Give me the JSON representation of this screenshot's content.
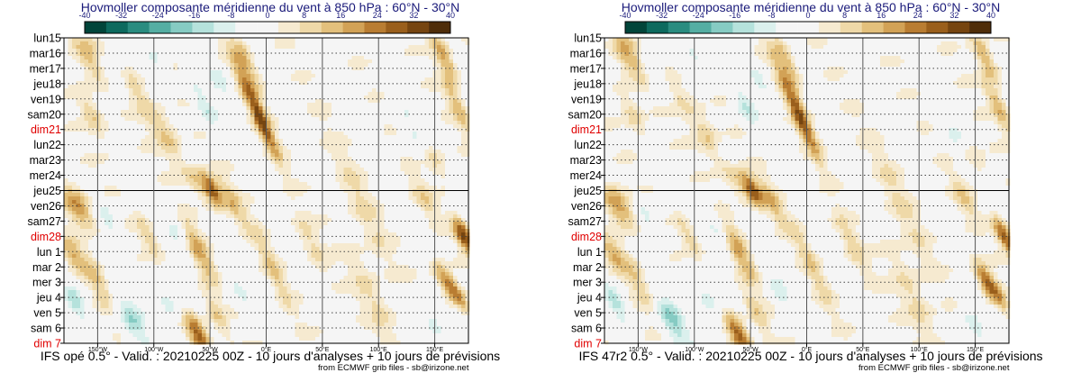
{
  "panels": [
    {
      "title": "Hovmoller composante méridienne du vent à 850 hPa : 60°N - 30°N",
      "caption": "IFS opé 0.5° - Valid. : 20210225 00Z - 10 jours d'analyses + 10 jours de prévisions",
      "credit": "from ECMWF grib files - sb@irizone.net"
    },
    {
      "title": "Hovmoller composante méridienne du vent à 850 hPa : 60°N - 30°N",
      "caption": "IFS 47r2 0.5° - Valid. : 20210225 00Z - 10 jours d'analyses + 10 jours de prévisions",
      "credit": "from ECMWF grib files - sb@irizone.net"
    }
  ],
  "chart_data": {
    "type": "heatmap",
    "colorbar": {
      "ticks": [
        "-40",
        "-32",
        "-24",
        "-16",
        "-8",
        "0",
        "8",
        "16",
        "24",
        "32",
        "40"
      ],
      "colors": [
        "#01453a",
        "#0d6a5e",
        "#2a8c80",
        "#55aea3",
        "#86cbc3",
        "#b5e2dc",
        "#dbf0ed",
        "#f5f5f5",
        "#f5f5f5",
        "#f6ead0",
        "#efd9a8",
        "#e3c07c",
        "#d2a256",
        "#b97d32",
        "#9a5f1c",
        "#764510",
        "#4f2d09"
      ]
    },
    "x_ticks": [
      "150°W",
      "100°W",
      "50°W",
      "0°E",
      "50°E",
      "100°E",
      "150°E"
    ],
    "x_values": [
      -150,
      -100,
      -50,
      0,
      50,
      100,
      150
    ],
    "xlim": [
      -180,
      180
    ],
    "days": [
      {
        "label": "lun15",
        "weekend": false
      },
      {
        "label": "mar16",
        "weekend": false
      },
      {
        "label": "mer17",
        "weekend": false
      },
      {
        "label": "jeu18",
        "weekend": false
      },
      {
        "label": "ven19",
        "weekend": false
      },
      {
        "label": "sam20",
        "weekend": false
      },
      {
        "label": "dim21",
        "weekend": true
      },
      {
        "label": "lun22",
        "weekend": false
      },
      {
        "label": "mar23",
        "weekend": false
      },
      {
        "label": "mer24",
        "weekend": false
      },
      {
        "label": "jeu25",
        "weekend": false
      },
      {
        "label": "ven26",
        "weekend": false
      },
      {
        "label": "sam27",
        "weekend": false
      },
      {
        "label": "dim28",
        "weekend": true
      },
      {
        "label": "lun 1",
        "weekend": false
      },
      {
        "label": "mar 2",
        "weekend": false
      },
      {
        "label": "mer 3",
        "weekend": false
      },
      {
        "label": "jeu 4",
        "weekend": false
      },
      {
        "label": "ven 5",
        "weekend": false
      },
      {
        "label": "sam 6",
        "weekend": false
      },
      {
        "label": "dim 7",
        "weekend": true
      }
    ],
    "analysis_end": "jeu25",
    "weekend_color": "#e00000",
    "features": [
      {
        "lon": -160,
        "day": 1.0,
        "dlon": 8,
        "dday": 1.4,
        "v": 14
      },
      {
        "lon": -155,
        "day": 5.0,
        "dlon": 6,
        "dday": 1.2,
        "v": 12
      },
      {
        "lon": -135,
        "day": 2.5,
        "dlon": 6,
        "dday": 1.0,
        "v": -9
      },
      {
        "lon": -115,
        "day": 3.5,
        "dlon": 7,
        "dday": 1.2,
        "v": 10
      },
      {
        "lon": -98,
        "day": 1.5,
        "dlon": 6,
        "dday": 1.0,
        "v": -8
      },
      {
        "lon": -88,
        "day": 6.5,
        "dlon": 8,
        "dday": 1.2,
        "v": 14
      },
      {
        "lon": -70,
        "day": 8.0,
        "dlon": 6,
        "dday": 1.0,
        "v": -10
      },
      {
        "lon": -55,
        "day": 4.5,
        "dlon": 6,
        "dday": 1.2,
        "v": -12
      },
      {
        "lon": -40,
        "day": 3.0,
        "dlon": 6,
        "dday": 1.0,
        "v": -9
      },
      {
        "lon": -12,
        "day": 4.0,
        "dlon": 5,
        "dday": 2.2,
        "v": 22
      },
      {
        "lon": -18,
        "day": 1.5,
        "dlon": 5,
        "dday": 1.2,
        "v": 14
      },
      {
        "lon": -2,
        "day": 6.0,
        "dlon": 4,
        "dday": 1.5,
        "v": 16
      },
      {
        "lon": -65,
        "day": 9.0,
        "dlon": 6,
        "dday": 1.0,
        "v": 16
      },
      {
        "lon": -48,
        "day": 10.0,
        "dlon": 5,
        "dday": 0.8,
        "v": 30
      },
      {
        "lon": -30,
        "day": 10.8,
        "dlon": 5,
        "dday": 1.2,
        "v": 14
      },
      {
        "lon": -168,
        "day": 11.0,
        "dlon": 8,
        "dday": 1.0,
        "v": 22
      },
      {
        "lon": -140,
        "day": 12.0,
        "dlon": 6,
        "dday": 1.0,
        "v": -10
      },
      {
        "lon": -105,
        "day": 13.0,
        "dlon": 5,
        "dday": 1.0,
        "v": 12
      },
      {
        "lon": -80,
        "day": 12.5,
        "dlon": 6,
        "dday": 1.2,
        "v": -8
      },
      {
        "lon": -60,
        "day": 14.0,
        "dlon": 6,
        "dday": 1.4,
        "v": 18
      },
      {
        "lon": -172,
        "day": 14.2,
        "dlon": 6,
        "dday": 0.8,
        "v": 16
      },
      {
        "lon": -170,
        "day": 17.3,
        "dlon": 6,
        "dday": 0.8,
        "v": -14
      },
      {
        "lon": -150,
        "day": 16.0,
        "dlon": 6,
        "dday": 1.4,
        "v": 12
      },
      {
        "lon": -120,
        "day": 18.5,
        "dlon": 8,
        "dday": 1.2,
        "v": -16
      },
      {
        "lon": -90,
        "day": 17.0,
        "dlon": 7,
        "dday": 1.2,
        "v": -10
      },
      {
        "lon": -60,
        "day": 19.5,
        "dlon": 6,
        "dday": 1.0,
        "v": 28
      },
      {
        "lon": -45,
        "day": 18.0,
        "dlon": 5,
        "dday": 1.2,
        "v": 12
      },
      {
        "lon": -25,
        "day": 16.5,
        "dlon": 6,
        "dday": 1.4,
        "v": -8
      },
      {
        "lon": 5,
        "day": 15.0,
        "dlon": 5,
        "dday": 2.0,
        "v": 12
      },
      {
        "lon": 40,
        "day": 13.5,
        "dlon": 6,
        "dday": 1.5,
        "v": 9
      },
      {
        "lon": 85,
        "day": 11.0,
        "dlon": 8,
        "dday": 3.0,
        "v": 8
      },
      {
        "lon": 95,
        "day": 17.0,
        "dlon": 8,
        "dday": 2.5,
        "v": 9
      },
      {
        "lon": 130,
        "day": 6.0,
        "dlon": 8,
        "dday": 1.2,
        "v": -8
      },
      {
        "lon": 140,
        "day": 10.5,
        "dlon": 6,
        "dday": 1.0,
        "v": 10
      },
      {
        "lon": 158,
        "day": 1.2,
        "dlon": 5,
        "dday": 1.2,
        "v": 20
      },
      {
        "lon": 170,
        "day": 4.5,
        "dlon": 5,
        "dday": 1.5,
        "v": 14
      },
      {
        "lon": 176,
        "day": 13.0,
        "dlon": 5,
        "dday": 0.8,
        "v": 34
      },
      {
        "lon": 160,
        "day": 16.0,
        "dlon": 5,
        "dday": 0.9,
        "v": 24
      },
      {
        "lon": 172,
        "day": 17.0,
        "dlon": 4,
        "dday": 0.8,
        "v": 16
      },
      {
        "lon": 150,
        "day": 19.0,
        "dlon": 6,
        "dday": 1.0,
        "v": -10
      },
      {
        "lon": 150,
        "day": 8.0,
        "dlon": 6,
        "dday": 1.0,
        "v": 10
      }
    ]
  }
}
